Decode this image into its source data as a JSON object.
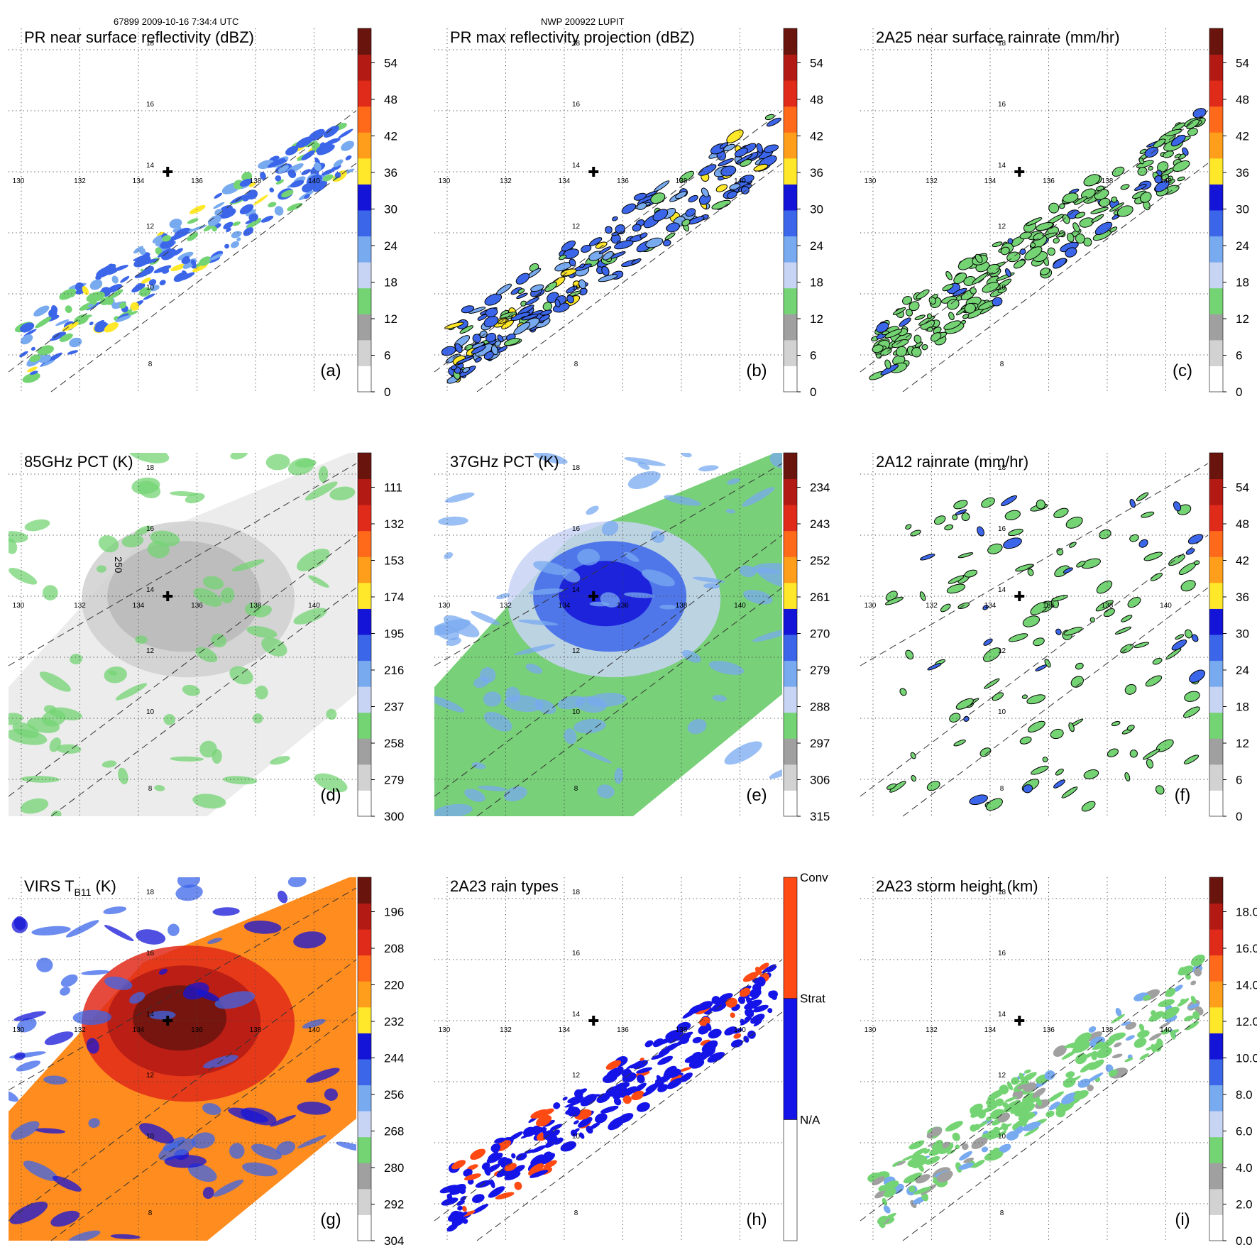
{
  "header": {
    "left": "67899 2009-10-16 7:34:4 UTC",
    "center": "NWP 200922 LUPIT"
  },
  "lon_labels": [
    "130",
    "132",
    "134",
    "136",
    "138",
    "140"
  ],
  "lat_labels": [
    "8",
    "10",
    "12",
    "14",
    "16",
    "18"
  ],
  "panels": [
    {
      "id": "a",
      "title": "PR near surface reflectivity (dBZ)",
      "letter": "(a)",
      "colorbar": {
        "ticks": [
          "0",
          "6",
          "12",
          "18",
          "24",
          "30",
          "36",
          "42",
          "48",
          "54"
        ]
      }
    },
    {
      "id": "b",
      "title": "PR max reflectivity projection (dBZ)",
      "letter": "(b)",
      "colorbar": {
        "ticks": [
          "0",
          "6",
          "12",
          "18",
          "24",
          "30",
          "36",
          "42",
          "48",
          "54"
        ]
      }
    },
    {
      "id": "c",
      "title": "2A25 near surface rainrate (mm/hr)",
      "letter": "(c)",
      "colorbar": {
        "ticks": [
          "0",
          "6",
          "12",
          "18",
          "24",
          "30",
          "36",
          "42",
          "48",
          "54"
        ]
      }
    },
    {
      "id": "d",
      "title": "85GHz PCT (K)",
      "letter": "(d)",
      "contour_label": "250",
      "colorbar": {
        "ticks": [
          "300",
          "279",
          "258",
          "237",
          "216",
          "195",
          "174",
          "153",
          "132",
          "111"
        ]
      }
    },
    {
      "id": "e",
      "title": "37GHz PCT (K)",
      "letter": "(e)",
      "colorbar": {
        "ticks": [
          "315",
          "306",
          "297",
          "288",
          "279",
          "270",
          "261",
          "252",
          "243",
          "234"
        ]
      }
    },
    {
      "id": "f",
      "title": "2A12 rainrate (mm/hr)",
      "letter": "(f)",
      "colorbar": {
        "ticks": [
          "0",
          "6",
          "12",
          "18",
          "24",
          "30",
          "36",
          "42",
          "48",
          "54"
        ]
      }
    },
    {
      "id": "g",
      "title": "VIRS T",
      "title_sub": "B11",
      "title_tail": " (K)",
      "letter": "(g)",
      "colorbar": {
        "ticks": [
          "304",
          "292",
          "280",
          "268",
          "256",
          "244",
          "232",
          "220",
          "208",
          "196"
        ]
      }
    },
    {
      "id": "h",
      "title": "2A23 rain types",
      "letter": "(h)",
      "colorbar": {
        "ticks": [
          "N/A",
          "Strat",
          "Conv"
        ]
      }
    },
    {
      "id": "i",
      "title": "2A23 storm height (km)",
      "letter": "(i)",
      "colorbar": {
        "ticks": [
          "0.0",
          "2.0",
          "4.0",
          "6.0",
          "8.0",
          "10.0",
          "12.0",
          "14.0",
          "16.0",
          "18.0"
        ]
      }
    }
  ],
  "colors": {
    "pr_scale": [
      "#ffffff",
      "#d2d2d2",
      "#a0a0a0",
      "#74d474",
      "#c8d4f4",
      "#78aaf0",
      "#3c66ea",
      "#1414d8",
      "#ffe82a",
      "#ff9e1a",
      "#ff6a1a",
      "#e02a1a",
      "#b41a14",
      "#6a140e"
    ],
    "pct_scale": [
      "#ffffff",
      "#d2d2d2",
      "#a0a0a0",
      "#74d474",
      "#c8d4f4",
      "#78aaf0",
      "#3c66ea",
      "#1414d8",
      "#ffe82a",
      "#ff9e1a",
      "#ff6a1a",
      "#e02a1a",
      "#b41a14",
      "#6a140e"
    ],
    "rain_types": [
      "#ffffff",
      "#1414e8",
      "#ff4a14"
    ]
  }
}
